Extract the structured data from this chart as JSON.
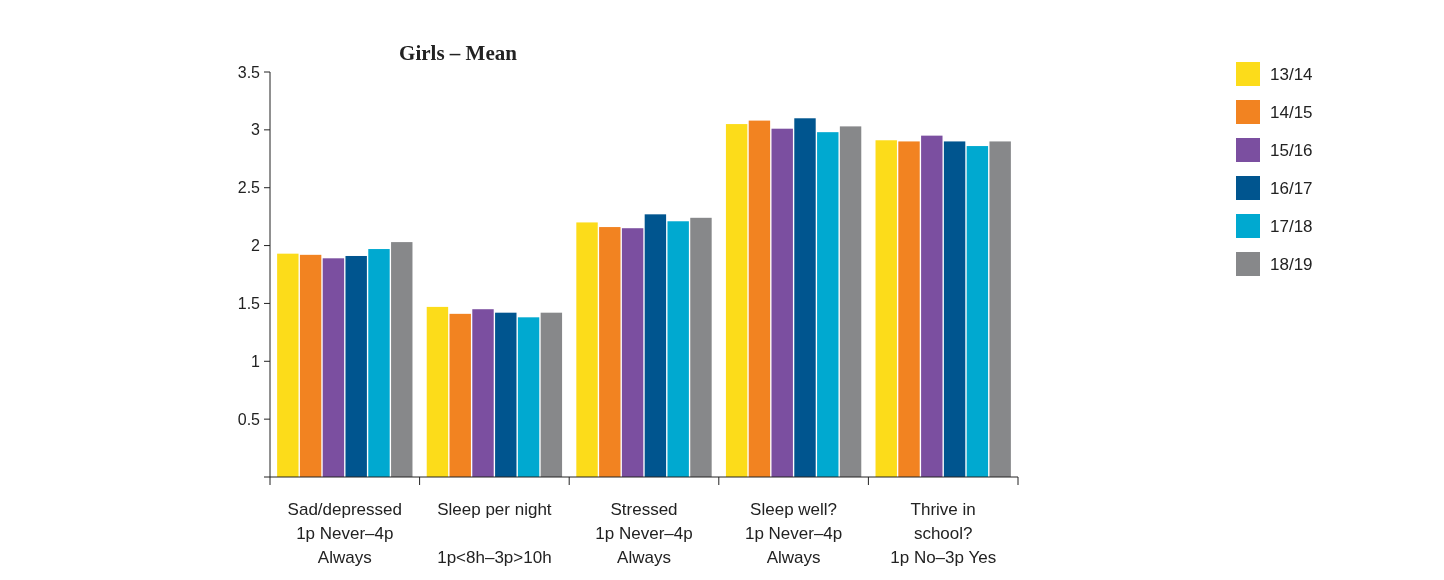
{
  "chart_data": {
    "type": "bar",
    "title": "Girls – Mean",
    "categories": [
      "Sad/depressed\n1p Never–4p\nAlways",
      "Sleep per night\n\n1p<8h–3p>10h",
      "Stressed\n1p Never–4p\nAlways",
      "Sleep well?\n1p Never–4p\nAlways",
      "Thrive in\nschool?\n1p No–3p Yes"
    ],
    "series": [
      {
        "name": "13/14",
        "color": "#fcdc1a",
        "values": [
          1.93,
          1.47,
          2.2,
          3.05,
          2.91
        ]
      },
      {
        "name": "14/15",
        "color": "#f28321",
        "values": [
          1.92,
          1.41,
          2.16,
          3.08,
          2.9
        ]
      },
      {
        "name": "15/16",
        "color": "#7b4fa0",
        "values": [
          1.89,
          1.45,
          2.15,
          3.01,
          2.95
        ]
      },
      {
        "name": "16/17",
        "color": "#00558f",
        "values": [
          1.91,
          1.42,
          2.27,
          3.1,
          2.9
        ]
      },
      {
        "name": "17/18",
        "color": "#00a9d0",
        "values": [
          1.97,
          1.38,
          2.21,
          2.98,
          2.86
        ]
      },
      {
        "name": "18/19",
        "color": "#87888a",
        "values": [
          2.03,
          1.42,
          2.24,
          3.03,
          2.9
        ]
      }
    ],
    "ylim": [
      0,
      3.5
    ],
    "yticks": [
      0.5,
      1,
      1.5,
      2,
      2.5,
      3,
      3.5
    ],
    "grid": false,
    "legend": "top right"
  }
}
